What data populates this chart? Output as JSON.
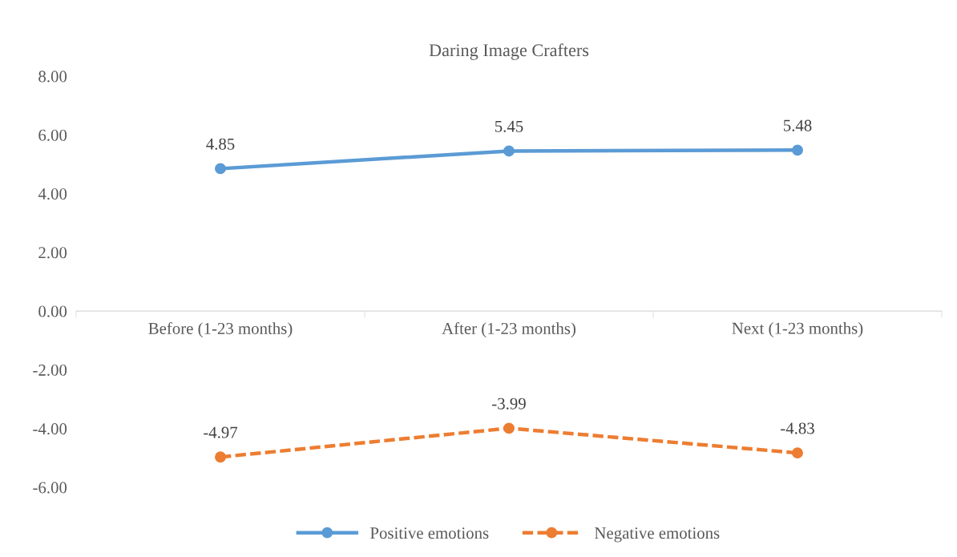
{
  "chart_data": {
    "type": "line",
    "title": "Daring Image Crafters",
    "categories": [
      "Before (1-23 months)",
      "After (1-23 months)",
      "Next (1-23 months)"
    ],
    "series": [
      {
        "name": "Positive emotions",
        "color": "#5b9bd5",
        "values": [
          4.85,
          5.45,
          5.48
        ],
        "line_style": "solid"
      },
      {
        "name": "Negative emotions",
        "color": "#ed7d31",
        "values": [
          -4.97,
          -3.99,
          -4.83
        ],
        "line_style": "dashed"
      }
    ],
    "ylim": [
      -6,
      8
    ],
    "yticks": [
      {
        "value": 8,
        "label": "8.00"
      },
      {
        "value": 6,
        "label": "6.00"
      },
      {
        "value": 4,
        "label": "4.00"
      },
      {
        "value": 2,
        "label": "2.00"
      },
      {
        "value": 0,
        "label": "0.00"
      },
      {
        "value": -2,
        "label": "-2.00"
      },
      {
        "value": -4,
        "label": "-4.00"
      },
      {
        "value": -6,
        "label": "-6.00"
      }
    ],
    "marker": "circle",
    "data_labels": true,
    "grid": false,
    "legend": "bottom"
  }
}
